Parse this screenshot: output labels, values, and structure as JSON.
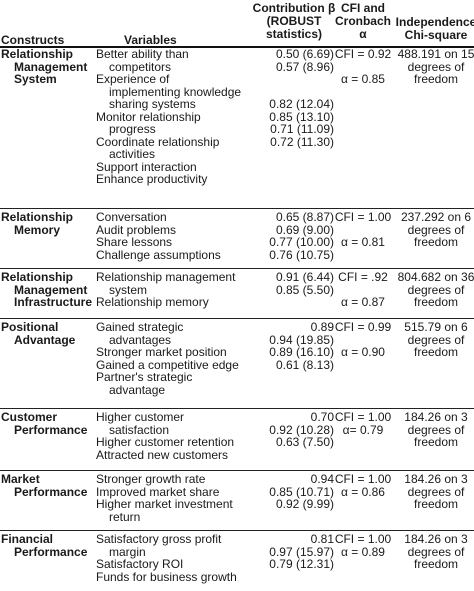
{
  "header": {
    "constructs": "Constructs",
    "variables": "Variables",
    "contribution": [
      "Contribution β",
      "(ROBUST",
      "statistics)"
    ],
    "cfi": [
      "CFI and",
      "Cronbach",
      "α"
    ],
    "independence": [
      "Independence",
      "Chi-square"
    ]
  },
  "groups": [
    {
      "construct": [
        "Relationship",
        "Management",
        "System"
      ],
      "variables": [
        "Better ability than",
        "competitors",
        "Experience of",
        "implementing knowledge",
        "sharing systems",
        "Monitor relationship",
        "progress",
        "Coordinate relationship",
        "activities",
        "Support interaction",
        "Enhance productivity"
      ],
      "contributions": [
        "0.50 (6.69)",
        "0.57 (8.96)",
        "",
        "0.82 (12.04)",
        "0.85 (13.10)",
        "0.71 (11.09)",
        "0.72 (11.30)"
      ],
      "cfi": [
        "CFI = 0.92",
        "",
        "α = 0.85"
      ],
      "chi": [
        "488.191 on 15",
        "degrees of",
        "freedom"
      ]
    },
    {
      "construct": [
        "Relationship",
        "Memory"
      ],
      "variables": [
        "Conversation",
        "Audit problems",
        "Share lessons",
        "Challenge assumptions"
      ],
      "contributions": [
        "0.65 (8.87)",
        "0.69 (9.00)",
        "0.77 (10.00)",
        "0.76 (10.75)"
      ],
      "cfi": [
        "CFI = 1.00",
        "",
        "α = 0.81"
      ],
      "chi": [
        "237.292 on 6",
        "degrees of",
        "freedom"
      ]
    },
    {
      "construct": [
        "Relationship",
        "Management",
        "Infrastructure"
      ],
      "variables": [
        "Relationship management",
        "system",
        "Relationship memory"
      ],
      "contributions": [
        "0.91 (6.44)",
        "0.85 (5.50)"
      ],
      "cfi": [
        "CFI = .92",
        "",
        "α = 0.87"
      ],
      "chi": [
        "804.682 on 36",
        "degrees of",
        "freedom"
      ]
    },
    {
      "construct": [
        "Positional",
        "Advantage"
      ],
      "variables": [
        "Gained strategic",
        "advantages",
        "Stronger market position",
        "Gained a competitive edge",
        "Partner's strategic",
        "advantage"
      ],
      "contributions": [
        "0.89",
        "0.94 (19.85)",
        "0.89 (16.10)",
        "0.61 (8.13)"
      ],
      "cfi": [
        "CFI = 0.99",
        "",
        "α = 0.90"
      ],
      "chi": [
        "515.79 on 6",
        "degrees of",
        "freedom"
      ]
    },
    {
      "construct": [
        "Customer",
        "Performance"
      ],
      "variables": [
        "Higher customer",
        "satisfaction",
        "Higher customer retention",
        "Attracted new customers"
      ],
      "contributions": [
        "0.70",
        "0.92 (10.28)",
        "0.63 (7.50)"
      ],
      "cfi": [
        "CFI = 1.00",
        "α= 0.79"
      ],
      "chi": [
        "184.26 on 3",
        "degrees of",
        "freedom"
      ]
    },
    {
      "construct": [
        "Market",
        "Performance"
      ],
      "variables": [
        "Stronger growth rate",
        "Improved market share",
        "Higher market investment",
        "return"
      ],
      "contributions": [
        "0.94",
        "0.85 (10.71)",
        "0.92 (9.99)"
      ],
      "cfi": [
        "CFI = 1.00",
        "α = 0.86"
      ],
      "chi": [
        "184.26 on 3",
        "degrees of",
        "freedom"
      ]
    },
    {
      "construct": [
        "Financial",
        "Performance"
      ],
      "variables": [
        "Satisfactory gross profit",
        "margin",
        "Satisfactory ROI",
        "Funds for business growth"
      ],
      "contributions": [
        "0.81",
        "0.97 (15.97)",
        "0.79 (12.31)"
      ],
      "cfi": [
        "CFI = 1.00",
        "α = 0.89"
      ],
      "chi": [
        "184.26 on 3",
        "degrees of",
        "freedom"
      ]
    }
  ]
}
